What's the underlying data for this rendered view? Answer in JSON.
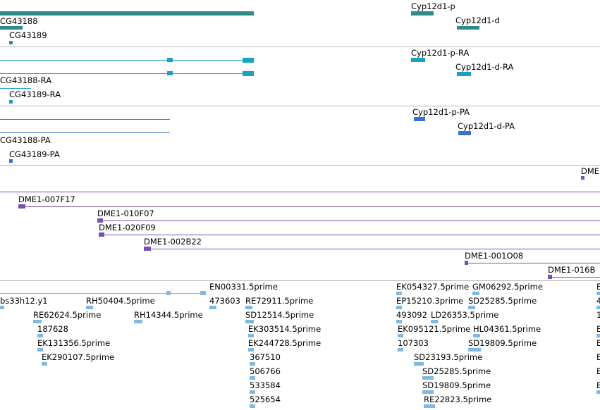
{
  "colors": {
    "gene": "#2e8b8b",
    "transcript": "#18a1c3",
    "protein": "#3a6fd0",
    "clone": "#7a4fb0",
    "est": "#80b8e0",
    "separator": "#b4b4b4"
  },
  "tracks": {
    "genes": {
      "labels": [
        "Cyp12d1-p",
        "Cyp12d1-d",
        "CG43188",
        "CG43189"
      ]
    },
    "transcripts": {
      "labels": [
        "Cyp12d1-p-RA",
        "Cyp12d1-d-RA",
        "CG43188-RA",
        "CG43189-RA"
      ]
    },
    "proteins": {
      "labels": [
        "Cyp12d1-p-PA",
        "Cyp12d1-d-PA",
        "CG43188-PA",
        "CG43189-PA"
      ]
    },
    "clones": {
      "labels": [
        "DME",
        "DME1-007F17",
        "DME1-010F07",
        "DME1-020F09",
        "DME1-002B22",
        "DME1-001O08",
        "DME1-016B"
      ]
    },
    "ests": {
      "labels": [
        "EN00331.5prime",
        "bs33h12.y1",
        "RH50404.5prime",
        "473603",
        "RE72911.5prime",
        "RE62624.5prime",
        "RH14344.5prime",
        "SD12514.5prime",
        "187628",
        "EK303514.5prime",
        "EK131356.5prime",
        "EK244728.5prime",
        "EK290107.5prime",
        "367510",
        "506766",
        "533584",
        "525654",
        "EK054327.5prime",
        "GM06292.5prime",
        "EP15210.3prime",
        "SD25285.5prime",
        "493092",
        "LD26353.5prime",
        "EK095121.5prime",
        "HL04361.5prime",
        "107303",
        "SD19809.5prime",
        "SD23193.5prime",
        "SD25285.5prime",
        "SD19809.5prime",
        "RE22823.5prime",
        "E",
        "4",
        "1",
        "E",
        "E",
        "E",
        "E",
        "E"
      ]
    }
  }
}
